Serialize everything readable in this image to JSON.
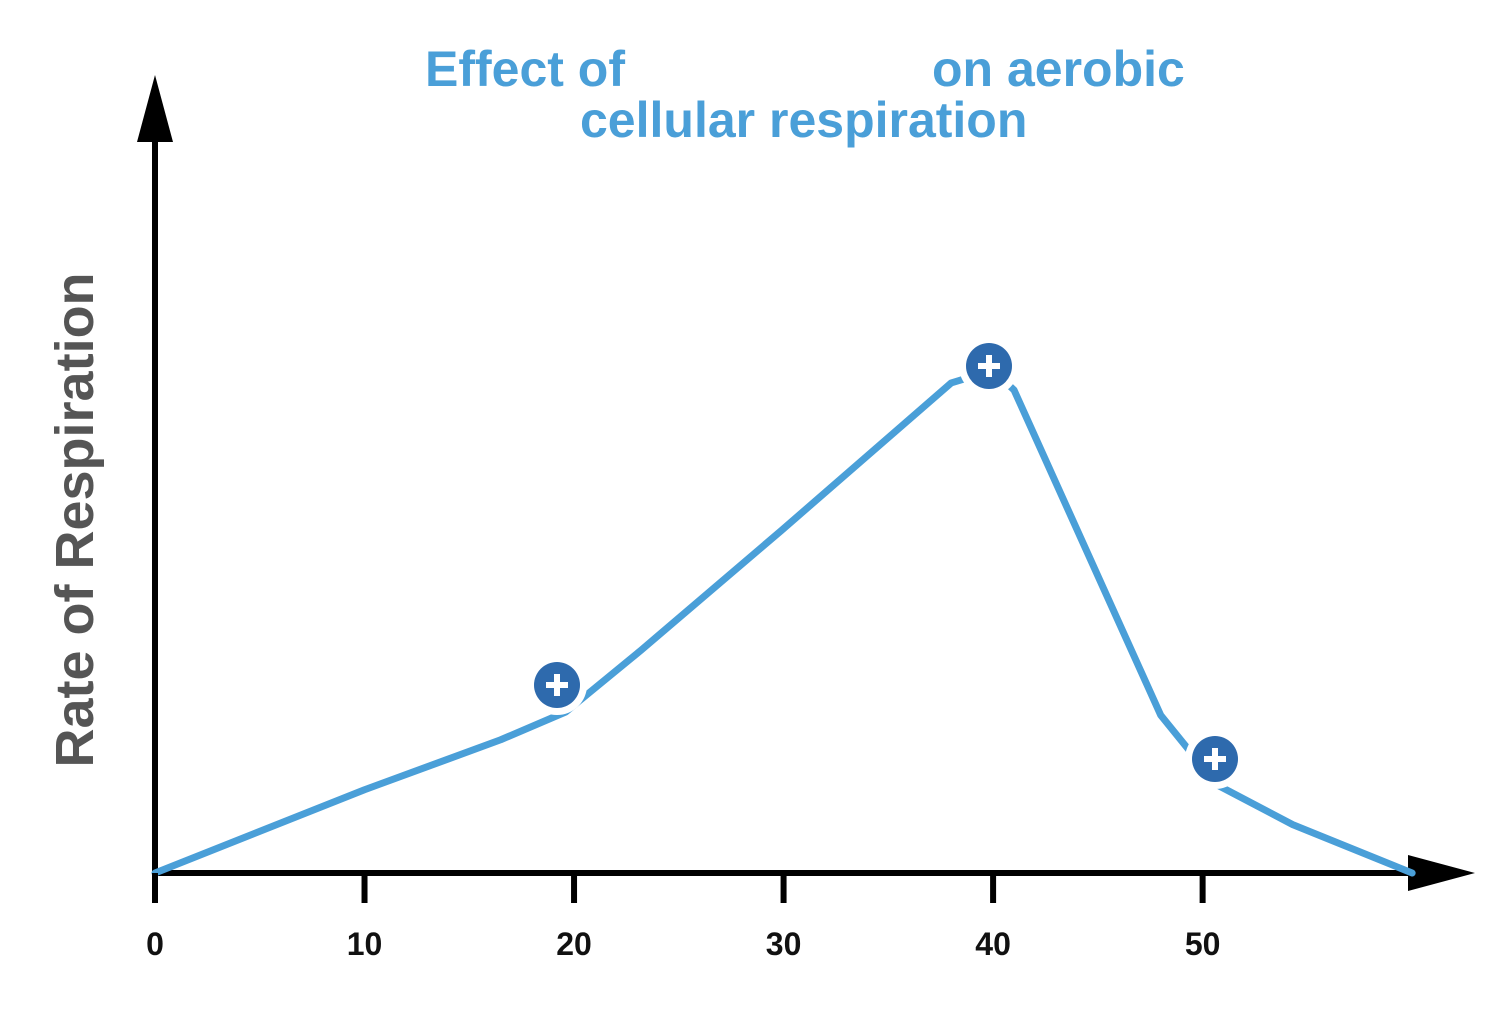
{
  "chart_data": {
    "type": "line",
    "title_lines": [
      "Effect of",
      "on aerobic",
      "cellular respiration"
    ],
    "ylabel": "Rate of Respiration",
    "x": [
      0,
      10,
      16.5,
      19.6,
      23.2,
      29.9,
      38,
      40,
      41,
      48,
      50.7,
      54.3,
      60
    ],
    "series": [
      {
        "color": "#4a9fd8",
        "values": [
          0,
          10.5,
          16.8,
          20.3,
          28.1,
          43.2,
          61.8,
          63.4,
          60.9,
          19.9,
          11.1,
          6.1,
          0
        ]
      }
    ],
    "xlim": [
      0,
      63
    ],
    "xticks": [
      0,
      10,
      20,
      30,
      40,
      50
    ],
    "ylim": [
      0,
      100
    ]
  }
}
